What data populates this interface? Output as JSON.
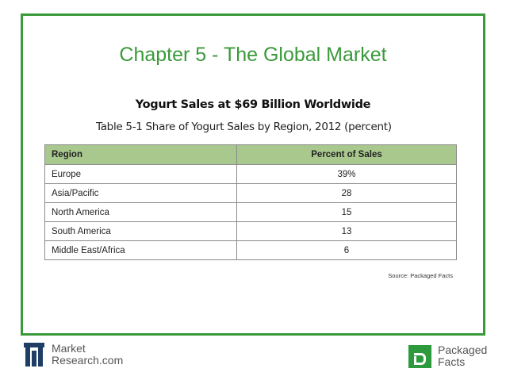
{
  "slide": {
    "title": "Chapter 5 - The Global Market",
    "subtitle": "Yogurt Sales at $69 Billion Worldwide",
    "caption": "Table 5-1 Share of Yogurt Sales by Region, 2012 (percent)"
  },
  "table": {
    "headers": [
      "Region",
      "Percent of Sales"
    ],
    "rows": [
      {
        "region": "Europe",
        "percent": "39%"
      },
      {
        "region": "Asia/Pacific",
        "percent": "28"
      },
      {
        "region": "North America",
        "percent": "15"
      },
      {
        "region": "South America",
        "percent": "13"
      },
      {
        "region": "Middle East/Africa",
        "percent": "6"
      }
    ],
    "header_color": "#a8c88e"
  },
  "source": "Source: Packaged Facts",
  "footer": {
    "left_logo": {
      "line1": "Market",
      "line2": "Research.com",
      "icon": "market-research-logo-icon"
    },
    "right_logo": {
      "line1": "Packaged",
      "line2": "Facts",
      "icon": "packaged-facts-logo-icon"
    }
  },
  "colors": {
    "accent": "#3a9a3a",
    "logo_blue": "#1f3e66",
    "logo_green": "#2e9a3e"
  }
}
